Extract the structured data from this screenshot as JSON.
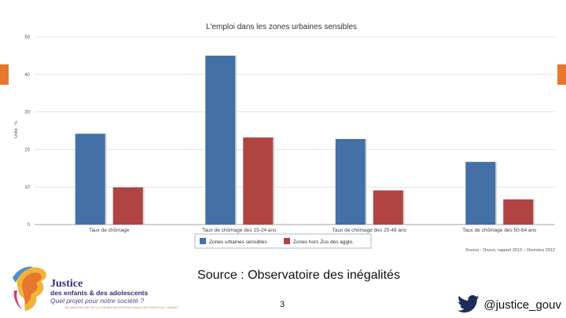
{
  "chart_data": {
    "type": "bar",
    "title": "L'emploi dans les zones urbaines sensibles",
    "ylabel": "Unité : %",
    "xlabel": "",
    "ylim": [
      0,
      50
    ],
    "yticks": [
      0,
      10,
      20,
      30,
      40,
      50
    ],
    "categories": [
      "Taux de chômage",
      "Taux de chômage des 15-24 ans",
      "Taux de chômage des 25-49 ans",
      "Taux de chômage des 50-64 ans"
    ],
    "series": [
      {
        "name": "Zones urbaines sensibles",
        "color": "#4470a8",
        "values": [
          24.2,
          45.0,
          22.8,
          16.7
        ]
      },
      {
        "name": "Zones hors Zus des agglo.",
        "color": "#b04442",
        "values": [
          9.9,
          23.2,
          9.1,
          6.7
        ]
      }
    ],
    "legend": "bottom-center",
    "source_note": "Source : Onzus, rapport 2013 – Données 2012"
  },
  "slide": {
    "source_text": "Source : Observatoire des inégalités",
    "page_number": "3",
    "twitter_handle": "@justice_gouv"
  },
  "logo": {
    "title": "Justice",
    "line1": "des enfants & des adolescents",
    "line2": "Quel projet pour notre société ?",
    "tagline": "25e ANNIVERSAIRE DE LA CONVENTION INTERNATIONALE DES DROITS DE L'ENFANT"
  },
  "colors": {
    "accent_orange": "#e8772e",
    "logo_purple": "#3d2a7a",
    "twitter_blue": "#1d2d5a"
  }
}
